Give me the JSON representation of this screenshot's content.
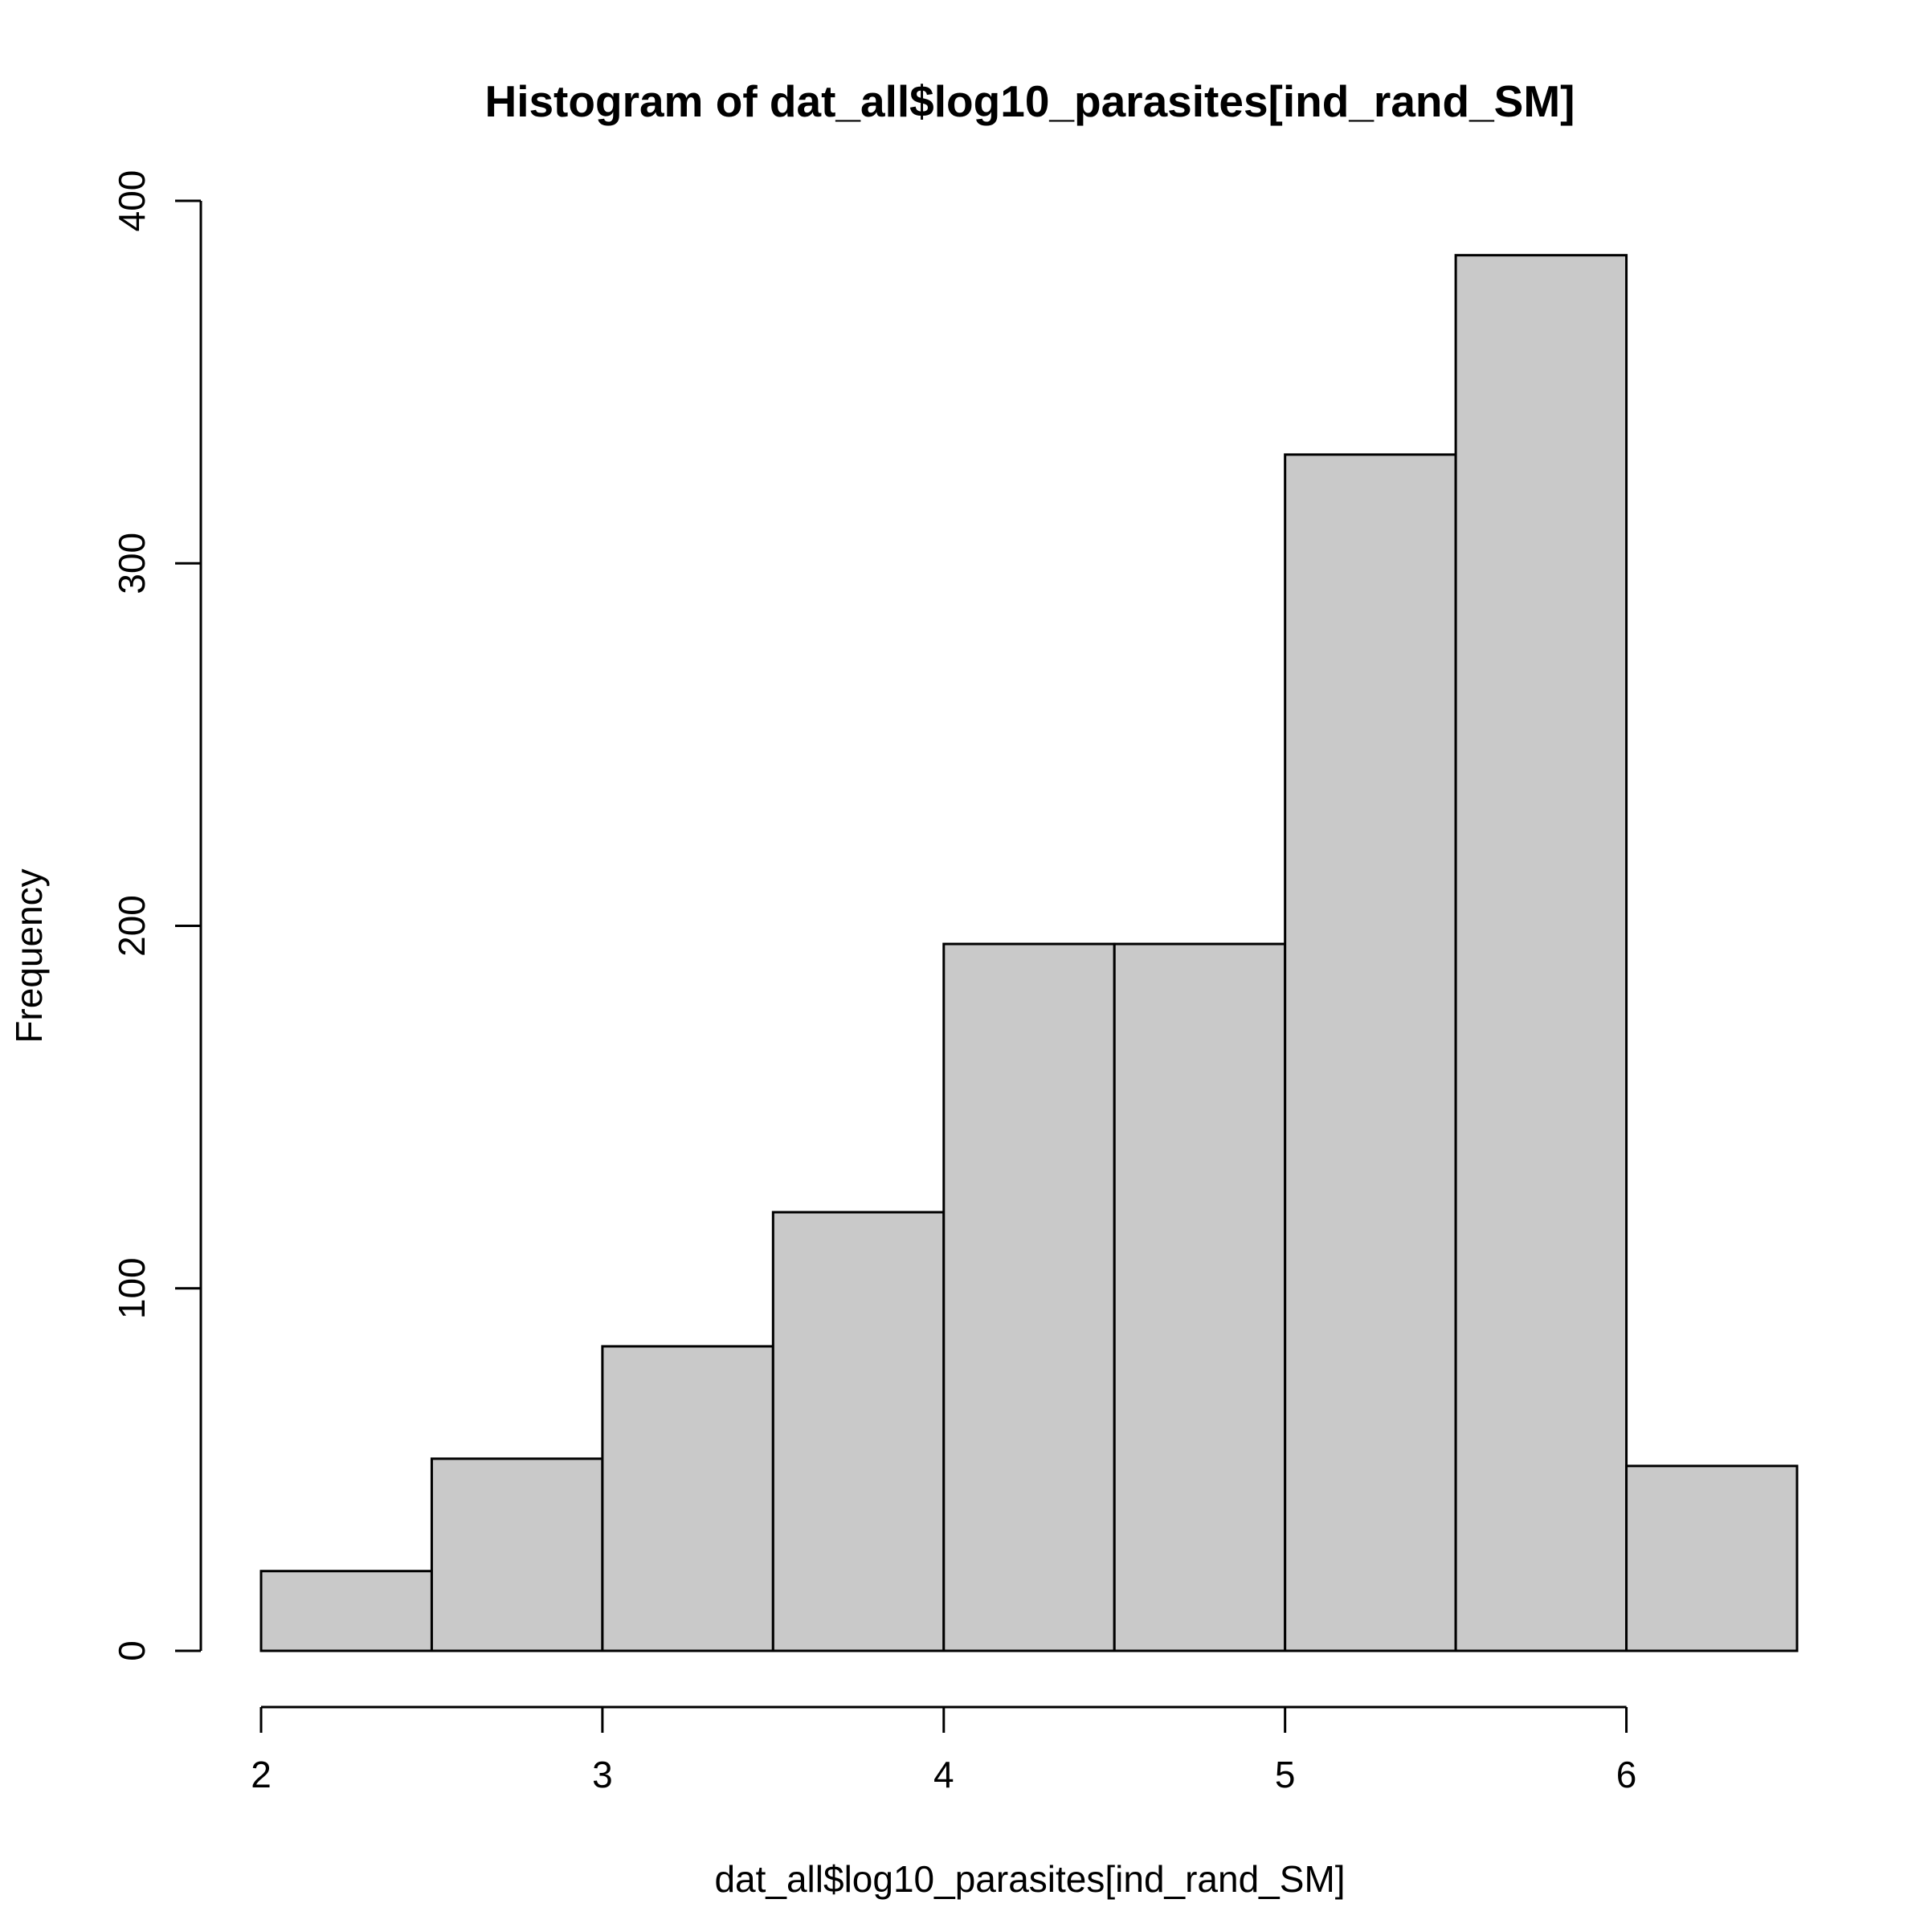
{
  "chart_data": {
    "type": "bar",
    "title": "Histogram of dat_all$log10_parasites[ind_rand_SM]",
    "xlabel": "dat_all$log10_parasites[ind_rand_SM]",
    "ylabel": "Frequency",
    "bin_edges": [
      2,
      2.5,
      3,
      3.5,
      4,
      4.5,
      5,
      5.5,
      6,
      6.5
    ],
    "values": [
      22,
      53,
      84,
      121,
      195,
      195,
      330,
      385,
      51
    ],
    "xlim": [
      2,
      6.5
    ],
    "ylim": [
      0,
      400
    ],
    "x_ticks": [
      2,
      3,
      4,
      5,
      6
    ],
    "y_ticks": [
      0,
      100,
      200,
      300,
      400
    ],
    "bar_color": "#c9c9c9",
    "grid": false
  }
}
